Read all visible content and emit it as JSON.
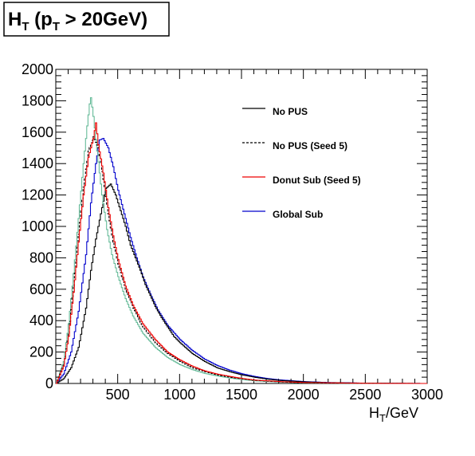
{
  "chart_data": {
    "type": "line",
    "title_main": "H",
    "title_sub": "T",
    "title_open": " (p",
    "title_sub2": "T",
    "title_close": " > 20GeV)",
    "xlabel_main": "H",
    "xlabel_sub": "T",
    "xlabel_unit": "/GeV",
    "ylabel": "",
    "xlim": [
      0,
      3000
    ],
    "ylim": [
      0,
      2000
    ],
    "x_ticks": [
      500,
      1000,
      1500,
      2000,
      2500,
      3000
    ],
    "x_tick_labels": [
      "500",
      "1000",
      "1500",
      "2000",
      "2500",
      "3000"
    ],
    "y_ticks": [
      0,
      200,
      400,
      600,
      800,
      1000,
      1200,
      1400,
      1600,
      1800,
      2000
    ],
    "y_tick_labels": [
      "0",
      "200",
      "400",
      "600",
      "800",
      "1000",
      "1200",
      "1400",
      "1600",
      "1800",
      "2000"
    ],
    "grid": false,
    "legend_position": "top-right",
    "series": [
      {
        "name": "No PUS",
        "color": "#000000",
        "dash": "solid",
        "points": [
          [
            0,
            0
          ],
          [
            60,
            30
          ],
          [
            120,
            100
          ],
          [
            180,
            230
          ],
          [
            240,
            480
          ],
          [
            280,
            720
          ],
          [
            320,
            920
          ],
          [
            360,
            1080
          ],
          [
            400,
            1240
          ],
          [
            440,
            1270
          ],
          [
            480,
            1200
          ],
          [
            520,
            1100
          ],
          [
            560,
            1000
          ],
          [
            600,
            880
          ],
          [
            640,
            800
          ],
          [
            680,
            720
          ],
          [
            720,
            630
          ],
          [
            760,
            560
          ],
          [
            800,
            490
          ],
          [
            850,
            420
          ],
          [
            900,
            360
          ],
          [
            950,
            300
          ],
          [
            1000,
            260
          ],
          [
            1100,
            190
          ],
          [
            1200,
            140
          ],
          [
            1300,
            100
          ],
          [
            1400,
            75
          ],
          [
            1500,
            55
          ],
          [
            1600,
            40
          ],
          [
            1700,
            28
          ],
          [
            1800,
            20
          ],
          [
            2000,
            10
          ],
          [
            2200,
            5
          ],
          [
            2500,
            2
          ],
          [
            3000,
            0
          ]
        ]
      },
      {
        "name": "No PUS (Seed 5)",
        "color": "#000000",
        "dash": "dashed",
        "points": [
          [
            0,
            0
          ],
          [
            60,
            120
          ],
          [
            100,
            320
          ],
          [
            140,
            620
          ],
          [
            180,
            950
          ],
          [
            220,
            1250
          ],
          [
            260,
            1480
          ],
          [
            300,
            1570
          ],
          [
            340,
            1500
          ],
          [
            380,
            1300
          ],
          [
            420,
            1080
          ],
          [
            460,
            900
          ],
          [
            500,
            760
          ],
          [
            560,
            600
          ],
          [
            620,
            480
          ],
          [
            700,
            360
          ],
          [
            800,
            260
          ],
          [
            900,
            190
          ],
          [
            1000,
            140
          ],
          [
            1100,
            100
          ],
          [
            1200,
            75
          ],
          [
            1300,
            55
          ],
          [
            1400,
            40
          ],
          [
            1500,
            30
          ],
          [
            1600,
            20
          ],
          [
            1800,
            10
          ],
          [
            2000,
            5
          ],
          [
            2500,
            1
          ],
          [
            3000,
            0
          ]
        ]
      },
      {
        "name": "Donut Sub (Seed 5)",
        "color": "#ee0000",
        "dash": "solid",
        "points": [
          [
            0,
            0
          ],
          [
            60,
            110
          ],
          [
            100,
            300
          ],
          [
            140,
            580
          ],
          [
            180,
            900
          ],
          [
            220,
            1200
          ],
          [
            260,
            1440
          ],
          [
            300,
            1560
          ],
          [
            320,
            1660
          ],
          [
            340,
            1520
          ],
          [
            380,
            1340
          ],
          [
            420,
            1120
          ],
          [
            460,
            940
          ],
          [
            500,
            790
          ],
          [
            560,
            620
          ],
          [
            620,
            500
          ],
          [
            700,
            380
          ],
          [
            800,
            280
          ],
          [
            900,
            200
          ],
          [
            1000,
            150
          ],
          [
            1100,
            110
          ],
          [
            1200,
            80
          ],
          [
            1300,
            60
          ],
          [
            1400,
            45
          ],
          [
            1500,
            32
          ],
          [
            1600,
            22
          ],
          [
            1800,
            12
          ],
          [
            2000,
            6
          ],
          [
            2500,
            1
          ],
          [
            3000,
            0
          ]
        ]
      },
      {
        "name": "",
        "color": "#66bb99",
        "dash": "solid",
        "points": [
          [
            0,
            0
          ],
          [
            60,
            140
          ],
          [
            100,
            380
          ],
          [
            140,
            700
          ],
          [
            180,
            1050
          ],
          [
            220,
            1400
          ],
          [
            250,
            1640
          ],
          [
            270,
            1780
          ],
          [
            280,
            1820
          ],
          [
            300,
            1700
          ],
          [
            330,
            1480
          ],
          [
            370,
            1200
          ],
          [
            410,
            980
          ],
          [
            450,
            820
          ],
          [
            500,
            680
          ],
          [
            560,
            540
          ],
          [
            620,
            430
          ],
          [
            700,
            320
          ],
          [
            800,
            230
          ],
          [
            900,
            165
          ],
          [
            1000,
            120
          ],
          [
            1100,
            88
          ],
          [
            1200,
            64
          ],
          [
            1300,
            48
          ],
          [
            1400,
            35
          ],
          [
            1500,
            25
          ],
          [
            1600,
            17
          ],
          [
            1800,
            9
          ],
          [
            2000,
            4
          ],
          [
            2500,
            1
          ],
          [
            3000,
            0
          ]
        ]
      },
      {
        "name": "Global Sub",
        "color": "#0000cc",
        "dash": "solid",
        "points": [
          [
            0,
            0
          ],
          [
            60,
            60
          ],
          [
            120,
            200
          ],
          [
            180,
            460
          ],
          [
            240,
            820
          ],
          [
            280,
            1150
          ],
          [
            320,
            1400
          ],
          [
            350,
            1550
          ],
          [
            380,
            1560
          ],
          [
            420,
            1500
          ],
          [
            460,
            1380
          ],
          [
            500,
            1230
          ],
          [
            550,
            1080
          ],
          [
            600,
            930
          ],
          [
            650,
            800
          ],
          [
            700,
            680
          ],
          [
            760,
            570
          ],
          [
            820,
            470
          ],
          [
            900,
            370
          ],
          [
            1000,
            280
          ],
          [
            1100,
            210
          ],
          [
            1200,
            155
          ],
          [
            1300,
            115
          ],
          [
            1400,
            85
          ],
          [
            1500,
            62
          ],
          [
            1600,
            45
          ],
          [
            1700,
            32
          ],
          [
            1800,
            23
          ],
          [
            2000,
            12
          ],
          [
            2200,
            6
          ],
          [
            2500,
            2
          ],
          [
            3000,
            0
          ]
        ]
      }
    ]
  }
}
